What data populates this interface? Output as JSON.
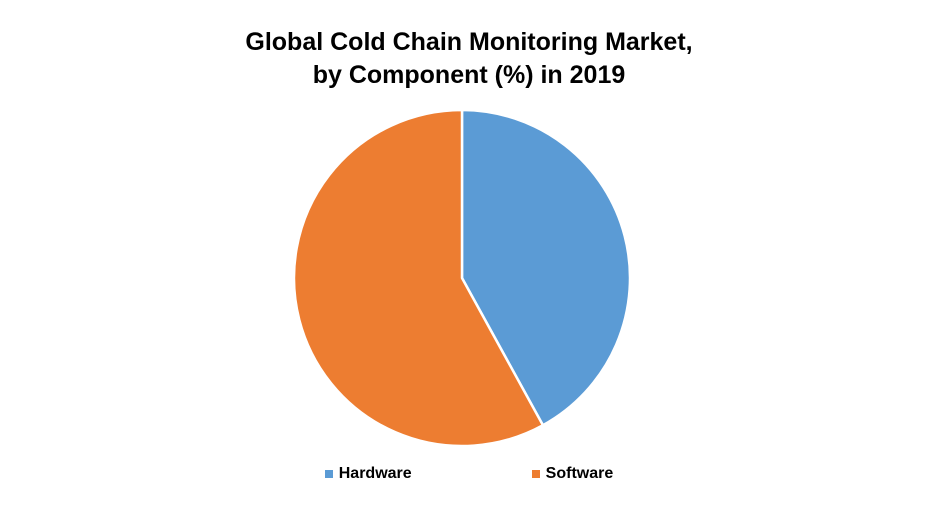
{
  "chart_data": {
    "type": "pie",
    "title_line1": "Global Cold Chain Monitoring Market,",
    "title_line2": "by Component (%) in 2019",
    "categories": [
      "Hardware",
      "Software"
    ],
    "values": [
      42,
      58
    ],
    "colors": [
      "#5B9BD5",
      "#ED7D31"
    ],
    "legend_position": "bottom"
  }
}
